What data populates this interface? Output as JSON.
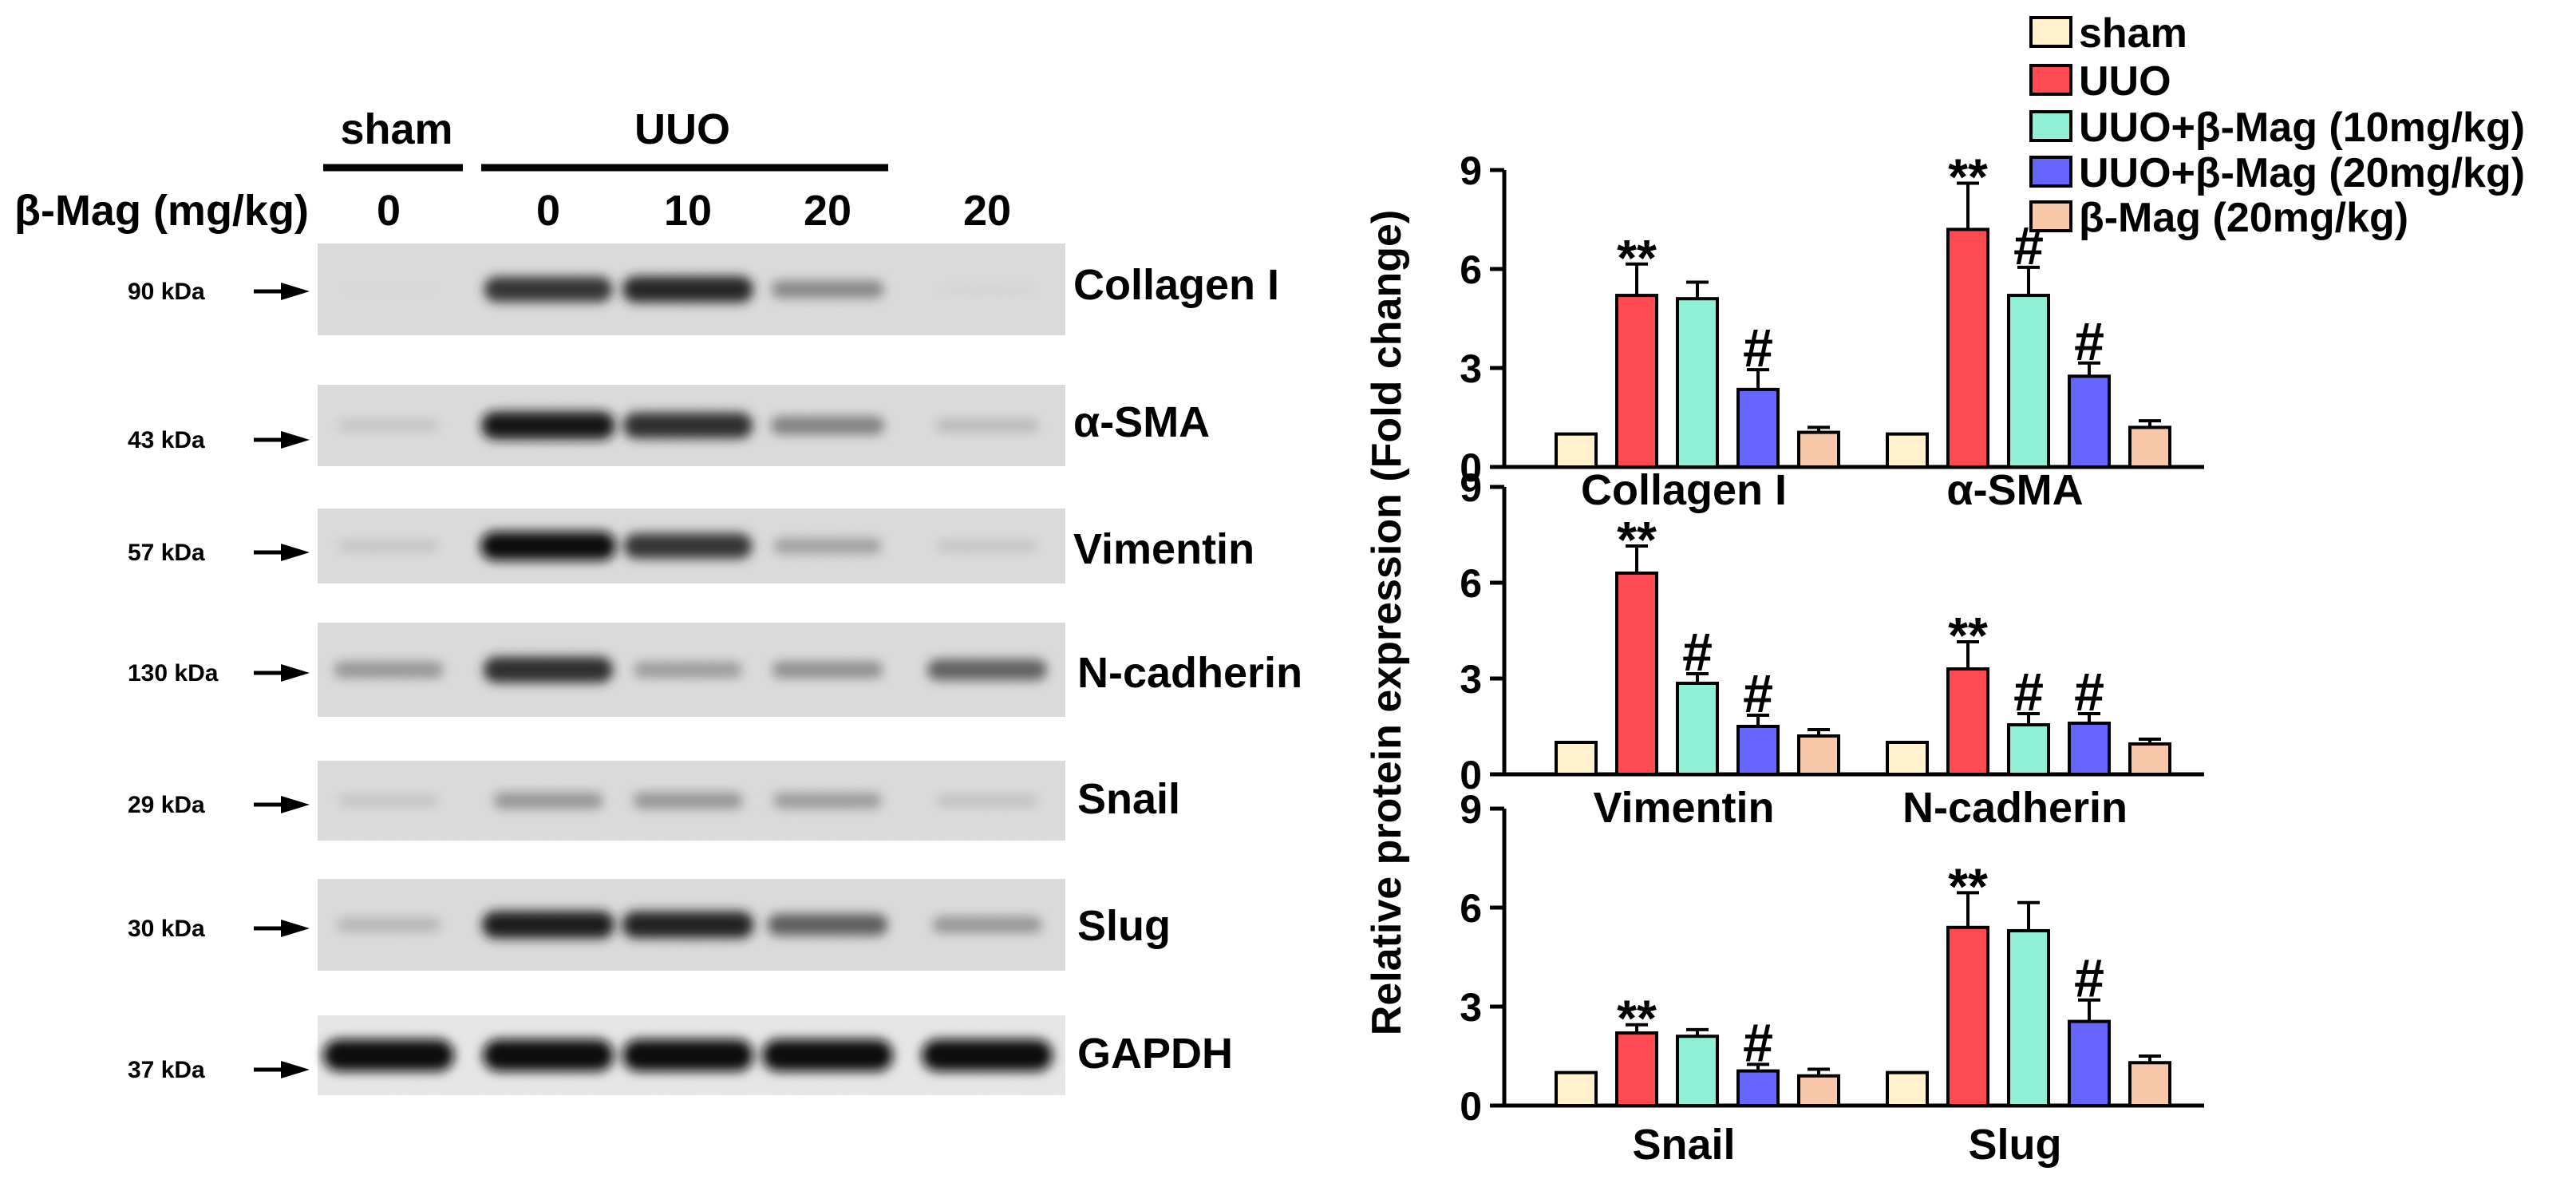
{
  "blot": {
    "groups": [
      {
        "label": "sham"
      },
      {
        "label": "UUO"
      }
    ],
    "dose_label": "β-Mag (mg/kg)",
    "doses": [
      "0",
      "0",
      "10",
      "20",
      "20"
    ],
    "rows": [
      {
        "protein": "Collagen I",
        "kda": "90 kDa",
        "intensity": [
          0.02,
          0.82,
          0.88,
          0.42,
          0.04
        ]
      },
      {
        "protein": "α-SMA",
        "kda": "43 kDa",
        "intensity": [
          0.12,
          0.95,
          0.85,
          0.45,
          0.18
        ]
      },
      {
        "protein": "Vimentin",
        "kda": "57 kDa",
        "intensity": [
          0.12,
          1.0,
          0.82,
          0.3,
          0.12
        ]
      },
      {
        "protein": "N-cadherin",
        "kda": "130 kDa",
        "intensity": [
          0.35,
          0.85,
          0.32,
          0.38,
          0.6
        ]
      },
      {
        "protein": "Snail",
        "kda": "29 kDa",
        "intensity": [
          0.12,
          0.35,
          0.35,
          0.32,
          0.14
        ]
      },
      {
        "protein": "Slug",
        "kda": "30 kDa",
        "intensity": [
          0.2,
          0.92,
          0.9,
          0.62,
          0.35
        ]
      },
      {
        "protein": "GAPDH",
        "kda": "37 kDa",
        "intensity": [
          1.0,
          1.0,
          1.0,
          1.0,
          1.0
        ]
      }
    ]
  },
  "chart_data": {
    "type": "bar",
    "ylabel": "Relative protein expression (Fold change)",
    "ylim": [
      0,
      9
    ],
    "yticks": [
      0,
      3,
      6,
      9
    ],
    "series_names": [
      "sham",
      "UUO",
      "UUO+β-Mag (10mg/kg)",
      "UUO+β-Mag (20mg/kg)",
      "β-Mag (20mg/kg)"
    ],
    "colors": [
      "#fff1cc",
      "#ff4a52",
      "#8ff0d6",
      "#6666ff",
      "#f8c8a8"
    ],
    "legend_position": "top-right",
    "panels": [
      {
        "groups": [
          {
            "name": "Collagen I",
            "values": [
              1.0,
              5.2,
              5.1,
              2.35,
              1.05
            ],
            "errors": [
              0,
              0.95,
              0.5,
              0.6,
              0.15
            ],
            "marks": [
              "",
              "**",
              "",
              "#",
              ""
            ]
          },
          {
            "name": "α-SMA",
            "values": [
              1.0,
              7.2,
              5.2,
              2.75,
              1.2
            ],
            "errors": [
              0,
              1.4,
              0.85,
              0.4,
              0.2
            ],
            "marks": [
              "",
              "**",
              "#",
              "#",
              ""
            ]
          }
        ]
      },
      {
        "groups": [
          {
            "name": "Vimentin",
            "values": [
              1.0,
              6.3,
              2.85,
              1.5,
              1.2
            ],
            "errors": [
              0,
              0.85,
              0.3,
              0.35,
              0.2
            ],
            "marks": [
              "",
              "**",
              "#",
              "#",
              ""
            ]
          },
          {
            "name": "N-cadherin",
            "values": [
              1.0,
              3.3,
              1.55,
              1.6,
              0.95
            ],
            "errors": [
              0,
              0.85,
              0.35,
              0.3,
              0.15
            ],
            "marks": [
              "",
              "**",
              "#",
              "#",
              ""
            ]
          }
        ]
      },
      {
        "groups": [
          {
            "name": "Snail",
            "values": [
              1.0,
              2.2,
              2.1,
              1.05,
              0.9
            ],
            "errors": [
              0,
              0.25,
              0.2,
              0.2,
              0.2
            ],
            "marks": [
              "",
              "**",
              "",
              "#",
              ""
            ]
          },
          {
            "name": "Slug",
            "values": [
              1.0,
              5.4,
              5.3,
              2.55,
              1.3
            ],
            "errors": [
              0,
              1.05,
              0.85,
              0.65,
              0.2
            ],
            "marks": [
              "",
              "**",
              "",
              "#",
              ""
            ]
          }
        ]
      }
    ]
  }
}
